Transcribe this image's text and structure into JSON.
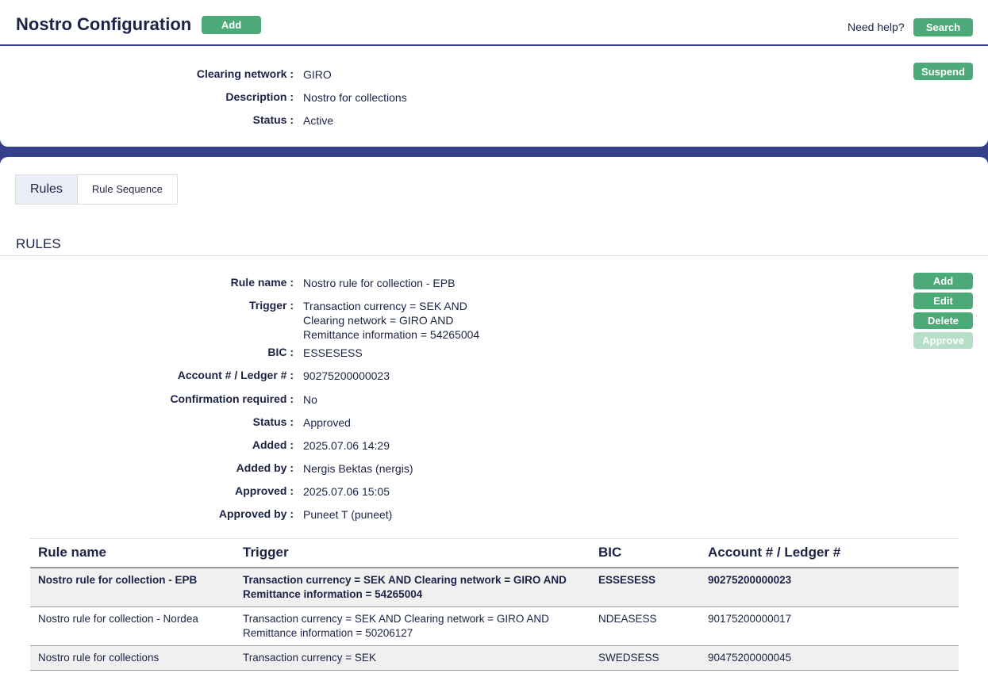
{
  "header": {
    "title": "Nostro Configuration",
    "add_label": "Add",
    "help_text": "Need help?",
    "search_label": "Search"
  },
  "config": {
    "suspend_label": "Suspend",
    "fields": [
      {
        "label": "Clearing network :",
        "value": "GIRO"
      },
      {
        "label": "Description :",
        "value": "Nostro for collections"
      },
      {
        "label": "Status :",
        "value": "Active"
      }
    ]
  },
  "tabs": [
    {
      "label": "Rules",
      "active": true
    },
    {
      "label": "Rule Sequence",
      "active": false
    }
  ],
  "rules": {
    "heading": "RULES",
    "actions": {
      "add": "Add",
      "edit": "Edit",
      "delete": "Delete",
      "approve": "Approve"
    },
    "fields": [
      {
        "label": "Rule name :",
        "value": "Nostro rule for collection - EPB"
      },
      {
        "label": "Trigger :",
        "value": [
          "Transaction currency = SEK AND",
          "Clearing network = GIRO AND",
          "Remittance information = 54265004"
        ]
      },
      {
        "label": "BIC :",
        "value": "ESSESESS"
      },
      {
        "label": "Account # / Ledger # :",
        "value": "90275200000023"
      },
      {
        "label": "Confirmation required :",
        "value": "No"
      },
      {
        "label": "Status :",
        "value": "Approved"
      },
      {
        "label": "Added :",
        "value": "2025.07.06 14:29"
      },
      {
        "label": "Added by :",
        "value": "Nergis Bektas (nergis)"
      },
      {
        "label": "Approved :",
        "value": "2025.07.06 15:05"
      },
      {
        "label": "Approved by :",
        "value": "Puneet T (puneet)"
      }
    ],
    "table": {
      "columns": [
        "Rule name",
        "Trigger",
        "BIC",
        "Account # / Ledger #"
      ],
      "rows": [
        [
          "Nostro rule for collection - EPB",
          "Transaction currency = SEK AND Clearing network = GIRO AND Remittance information = 54265004",
          "ESSESESS",
          "90275200000023"
        ],
        [
          "Nostro rule for collection - Nordea",
          "Transaction currency = SEK AND Clearing network = GIRO AND Remittance information = 50206127",
          "NDEASESS",
          "90175200000017"
        ],
        [
          "Nostro rule for collections",
          "Transaction currency = SEK",
          "SWEDSESS",
          "90475200000045"
        ]
      ]
    }
  }
}
